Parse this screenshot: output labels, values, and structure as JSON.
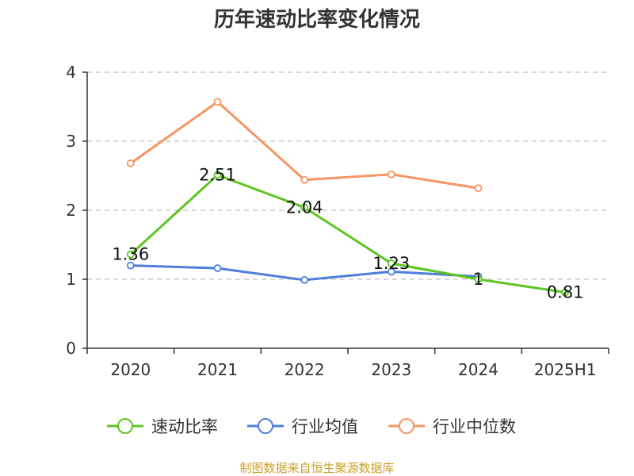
{
  "chart_data": {
    "type": "line",
    "title": "历年速动比率变化情况",
    "categories": [
      "2020",
      "2021",
      "2022",
      "2023",
      "2024",
      "2025H1"
    ],
    "ylim": [
      0,
      4
    ],
    "yticks": [
      0,
      1,
      2,
      3,
      4
    ],
    "grid": true,
    "legend_position": "bottom",
    "series": [
      {
        "name": "速动比率",
        "color": "#5cc520",
        "values": [
          1.36,
          2.51,
          2.04,
          1.23,
          1.0,
          0.81
        ],
        "labels": [
          "1.36",
          "2.51",
          "2.04",
          "1.23",
          "1",
          "0.81"
        ]
      },
      {
        "name": "行业均值",
        "color": "#4f7fdb",
        "values": [
          1.2,
          1.16,
          0.99,
          1.11,
          1.04,
          null
        ]
      },
      {
        "name": "行业中位数",
        "color": "#f59562",
        "values": [
          2.68,
          3.57,
          2.44,
          2.52,
          2.32,
          null
        ]
      }
    ]
  },
  "footer": {
    "source": "制图数据来自恒生聚源数据库"
  }
}
